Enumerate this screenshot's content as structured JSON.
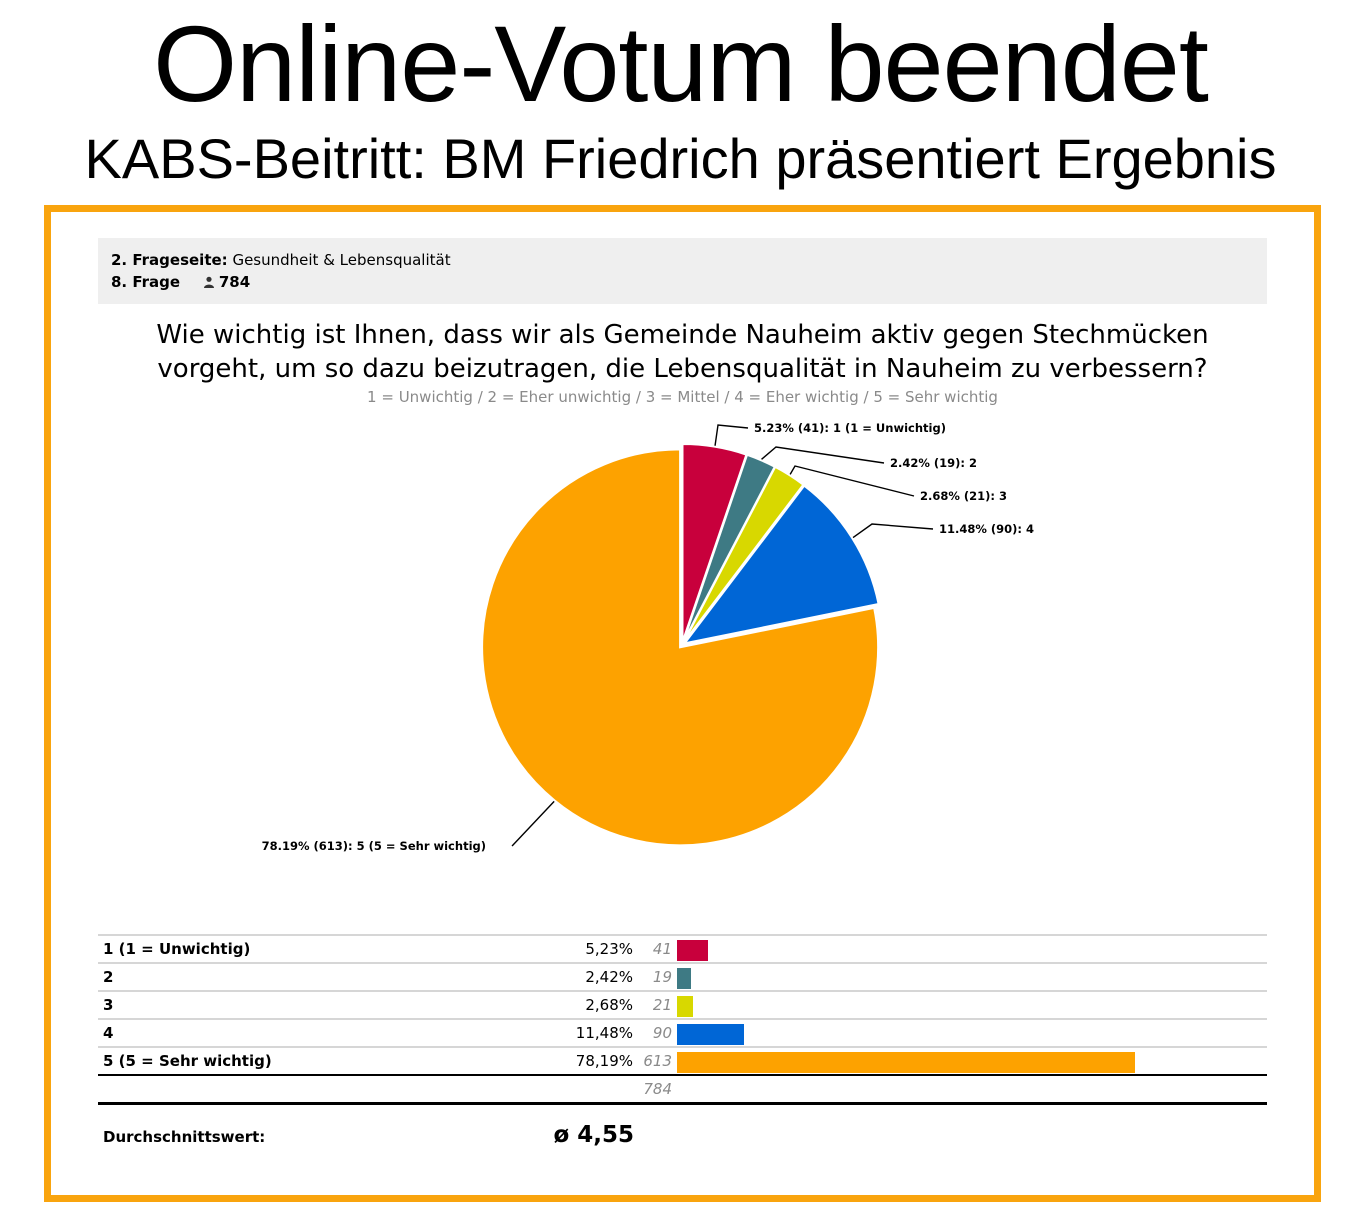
{
  "headline": "Online-Votum beendet",
  "subheadline": "KABS-Beitritt: BM Friedrich präsentiert Ergebnis",
  "survey": {
    "page_label": "2. Frageseite:",
    "page_name": "Gesundheit & Lebensqualität",
    "question_label": "8. Frage",
    "respondents": "784",
    "question_text": "Wie wichtig ist Ihnen, dass wir als Gemeinde Nauheim aktiv gegen Stechmücken vorgeht, um so dazu beizutragen, die Lebensqualität in Nauheim zu verbessern?",
    "scale_legend": "1 = Unwichtig / 2 = Eher unwichtig / 3 = Mittel / 4 = Eher wichtig / 5 = Sehr wichtig"
  },
  "chart_data": {
    "type": "pie",
    "slices": [
      {
        "label": "5.23% (41): 1 (1 = Unwichtig)",
        "value": 41,
        "percent": 5.23,
        "color": "#c8003c"
      },
      {
        "label": "2.42% (19): 2",
        "value": 19,
        "percent": 2.42,
        "color": "#3e7a84"
      },
      {
        "label": "2.68% (21): 3",
        "value": 21,
        "percent": 2.68,
        "color": "#d8d800"
      },
      {
        "label": "11.48% (90): 4",
        "value": 90,
        "percent": 11.48,
        "color": "#0066d6"
      },
      {
        "label": "78.19% (613): 5 (5 = Sehr wichtig)",
        "value": 613,
        "percent": 78.19,
        "color": "#fda200"
      }
    ]
  },
  "table": {
    "rows": [
      {
        "label": "1 (1 = Unwichtig)",
        "pct": "5,23%",
        "count": "41",
        "value": 41,
        "color": "#c8003c"
      },
      {
        "label": "2",
        "pct": "2,42%",
        "count": "19",
        "value": 19,
        "color": "#3e7a84"
      },
      {
        "label": "3",
        "pct": "2,68%",
        "count": "21",
        "value": 21,
        "color": "#d8d800"
      },
      {
        "label": "4",
        "pct": "11,48%",
        "count": "90",
        "value": 90,
        "color": "#0066d6"
      },
      {
        "label": "5 (5 = Sehr wichtig)",
        "pct": "78,19%",
        "count": "613",
        "value": 613,
        "color": "#fda200"
      }
    ],
    "total": "784",
    "average_label": "Durchschnittswert:",
    "average_value": "ø 4,55"
  }
}
